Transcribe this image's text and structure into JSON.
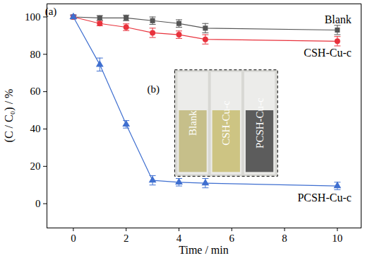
{
  "chart_data": {
    "type": "line",
    "x_label": "Time / min",
    "y_label": "(C / C₀) / %",
    "x": [
      0,
      1,
      2,
      3,
      4,
      5,
      10
    ],
    "series": [
      {
        "name": "Blank",
        "color": "#555555",
        "marker": "square",
        "values": [
          100,
          99.5,
          99.5,
          98,
          96.5,
          94,
          93
        ],
        "errors": [
          1,
          1.2,
          1.5,
          2,
          2,
          2.5,
          2.5
        ]
      },
      {
        "name": "CSH-Cu-c",
        "color": "#e8323c",
        "marker": "circle",
        "values": [
          100,
          96.5,
          94.5,
          91.5,
          90.5,
          88,
          87
        ],
        "errors": [
          1,
          1.2,
          1.8,
          2.5,
          2,
          2.5,
          2.5
        ]
      },
      {
        "name": "PCSH-Cu-c",
        "color": "#3f6fd0",
        "marker": "triangle",
        "values": [
          100,
          74.5,
          42.5,
          12.5,
          11.5,
          11,
          9.5
        ],
        "errors": [
          1,
          3.5,
          2,
          2.5,
          2,
          2.5,
          2
        ]
      }
    ],
    "xlim": [
      -1,
      10.9
    ],
    "ylim": [
      -13,
      107
    ],
    "xticks": [
      0,
      2,
      4,
      6,
      8,
      10
    ],
    "yticks": [
      0,
      20,
      40,
      60,
      80,
      100
    ],
    "grid": false,
    "annotations": [
      {
        "text": "(a)"
      }
    ],
    "inset": {
      "label": "(b)",
      "vials": [
        {
          "label": "Blank",
          "color": "#c6bf8a"
        },
        {
          "label": "CSH-Cu-c",
          "color": "#cdc483"
        },
        {
          "label": "PCSH-Cu-c",
          "color": "#5c5c5c"
        }
      ]
    }
  }
}
